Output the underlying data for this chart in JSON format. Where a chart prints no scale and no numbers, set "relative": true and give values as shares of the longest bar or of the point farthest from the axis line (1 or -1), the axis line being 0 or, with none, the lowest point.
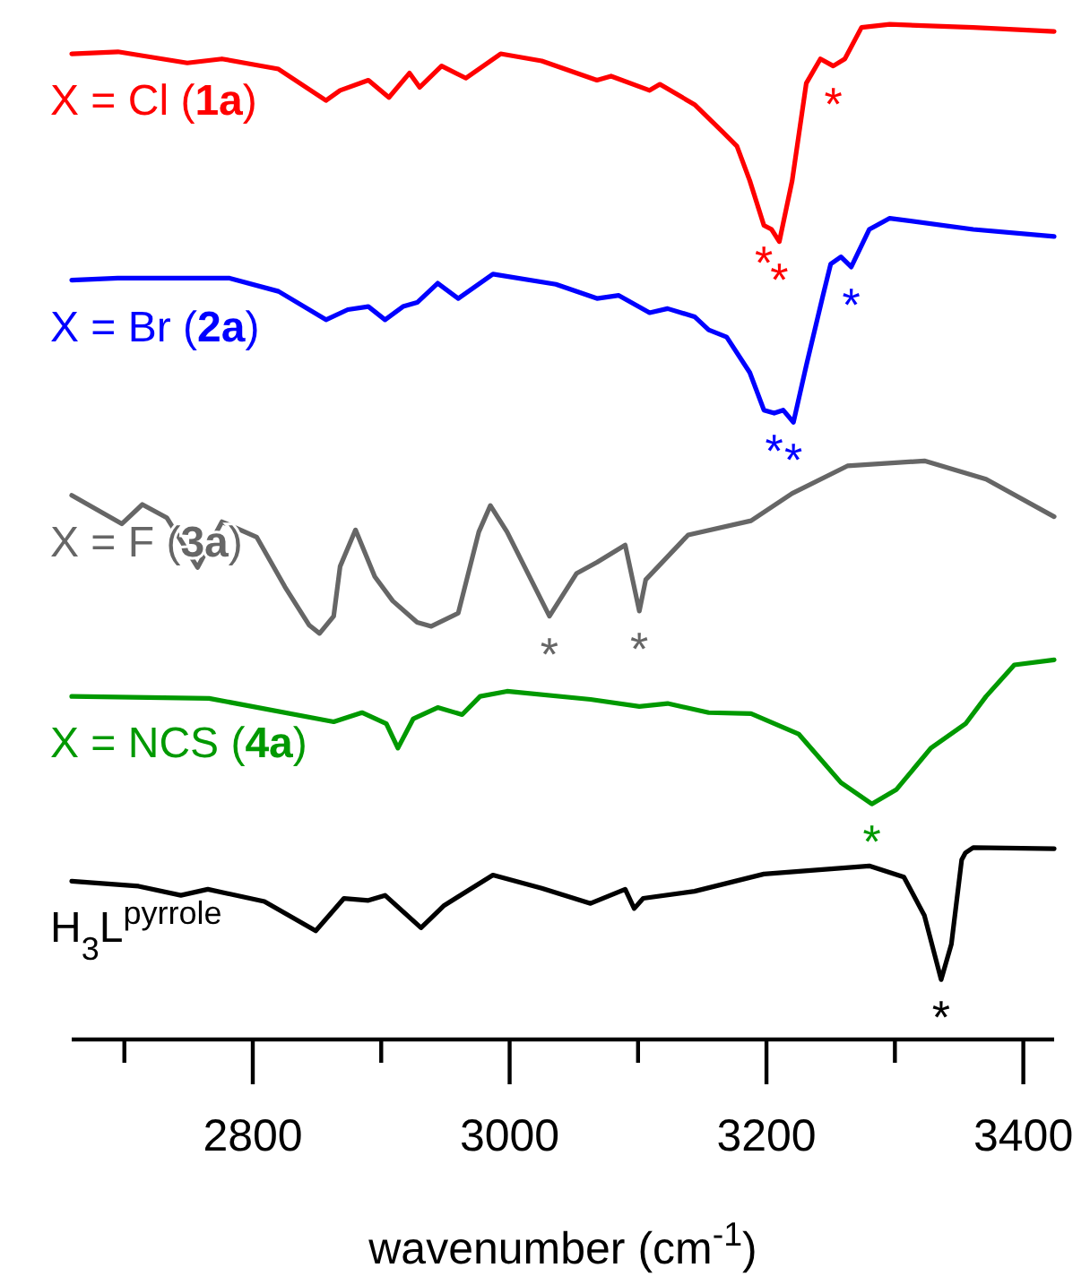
{
  "chart_data": {
    "type": "line",
    "relative": true,
    "xlabel": "wavenumber (cm$^{-1}$)",
    "xlim": [
      2659,
      3424
    ],
    "xticks": [
      {
        "value": 2700,
        "label": null
      },
      2800,
      {
        "value": 2900,
        "label": null
      },
      3000,
      {
        "value": 3100,
        "label": null
      },
      3200,
      {
        "value": 3300,
        "label": null
      },
      3400
    ],
    "tick_labels": "x",
    "legend": false,
    "marker": "none",
    "line_style": "solid",
    "series": [
      {
        "name": "X = Cl (1a)",
        "color": "#ff0000",
        "x": [
          2659,
          2695,
          2749,
          2776,
          2820,
          2857,
          2868,
          2890,
          2906,
          2922,
          2930,
          2947,
          2966,
          2993,
          3025,
          3068,
          3079,
          3109,
          3117,
          3144,
          3166,
          3177,
          3187,
          3198,
          3204,
          3210,
          3220,
          3231,
          3242,
          3252,
          3261,
          3274,
          3296,
          3361,
          3424
        ],
        "values": [
          0.971,
          0.973,
          0.962,
          0.966,
          0.956,
          0.925,
          0.935,
          0.945,
          0.928,
          0.952,
          0.938,
          0.959,
          0.947,
          0.971,
          0.964,
          0.945,
          0.949,
          0.935,
          0.941,
          0.921,
          0.894,
          0.88,
          0.846,
          0.802,
          0.798,
          0.786,
          0.846,
          0.942,
          0.966,
          0.959,
          0.966,
          0.997,
          1.0,
          0.997,
          0.993
        ]
      },
      {
        "name": "X = Br (2a)",
        "color": "#0000ff",
        "x": [
          2659,
          2695,
          2782,
          2820,
          2857,
          2874,
          2890,
          2903,
          2917,
          2928,
          2944,
          2960,
          2987,
          3036,
          3068,
          3085,
          3109,
          3123,
          3144,
          3155,
          3169,
          3187,
          3198,
          3206,
          3213,
          3221,
          3231,
          3244,
          3250,
          3258,
          3266,
          3280,
          3296,
          3361,
          3424
        ],
        "values": [
          0.748,
          0.75,
          0.75,
          0.737,
          0.709,
          0.719,
          0.722,
          0.709,
          0.722,
          0.726,
          0.745,
          0.73,
          0.754,
          0.744,
          0.73,
          0.733,
          0.716,
          0.72,
          0.712,
          0.699,
          0.692,
          0.657,
          0.62,
          0.617,
          0.62,
          0.608,
          0.664,
          0.733,
          0.764,
          0.771,
          0.761,
          0.798,
          0.809,
          0.798,
          0.791
        ]
      },
      {
        "name": "X = F (3a)",
        "color": "#666666",
        "x": [
          2659,
          2698,
          2714,
          2733,
          2757,
          2776,
          2803,
          2825,
          2844,
          2852,
          2863,
          2868,
          2880,
          2895,
          2909,
          2928,
          2939,
          2960,
          2976,
          2985,
          2998,
          3031,
          3052,
          3068,
          3090,
          3101,
          3106,
          3139,
          3188,
          3220,
          3263,
          3323,
          3371,
          3424
        ],
        "values": [
          0.536,
          0.508,
          0.527,
          0.514,
          0.465,
          0.51,
          0.495,
          0.446,
          0.408,
          0.4,
          0.417,
          0.466,
          0.502,
          0.456,
          0.432,
          0.411,
          0.407,
          0.42,
          0.5,
          0.526,
          0.5,
          0.417,
          0.459,
          0.47,
          0.487,
          0.422,
          0.453,
          0.497,
          0.511,
          0.538,
          0.565,
          0.57,
          0.552,
          0.515
        ]
      },
      {
        "name": "X = NCS (4a)",
        "color": "#009900",
        "x": [
          2659,
          2766,
          2863,
          2885,
          2904,
          2913,
          2925,
          2944,
          2963,
          2977,
          2998,
          3063,
          3101,
          3123,
          3155,
          3188,
          3225,
          3258,
          3282,
          3301,
          3328,
          3355,
          3371,
          3393,
          3424
        ],
        "values": [
          0.338,
          0.336,
          0.313,
          0.322,
          0.311,
          0.287,
          0.316,
          0.327,
          0.32,
          0.338,
          0.343,
          0.335,
          0.328,
          0.331,
          0.322,
          0.321,
          0.301,
          0.253,
          0.232,
          0.246,
          0.287,
          0.311,
          0.338,
          0.369,
          0.374
        ]
      },
      {
        "name": "H$_{3}$L$^{pyrrole}$",
        "color": "#000000",
        "x": [
          2659,
          2711,
          2744,
          2765,
          2809,
          2849,
          2871,
          2890,
          2903,
          2931,
          2949,
          2987,
          3025,
          3063,
          3090,
          3097,
          3104,
          3144,
          3198,
          3280,
          3307,
          3323,
          3336,
          3344,
          3352,
          3355,
          3361,
          3424
        ],
        "values": [
          0.156,
          0.151,
          0.142,
          0.148,
          0.136,
          0.107,
          0.139,
          0.137,
          0.142,
          0.11,
          0.132,
          0.162,
          0.149,
          0.134,
          0.148,
          0.129,
          0.139,
          0.146,
          0.163,
          0.171,
          0.16,
          0.122,
          0.059,
          0.094,
          0.177,
          0.184,
          0.189,
          0.188
        ]
      }
    ],
    "annotations": [
      {
        "text": "*",
        "x": 3198,
        "y": 0.802
      },
      {
        "text": "*",
        "x": 3210,
        "y": 0.786
      },
      {
        "text": "*",
        "x": 3252,
        "y": 0.959
      },
      {
        "text": "*",
        "x": 3206,
        "y": 0.617
      },
      {
        "text": "*",
        "x": 3221,
        "y": 0.608
      },
      {
        "text": "*",
        "x": 3266,
        "y": 0.761
      },
      {
        "text": "*",
        "x": 3031,
        "y": 0.417
      },
      {
        "text": "*",
        "x": 3101,
        "y": 0.422
      },
      {
        "text": "*",
        "x": 3282,
        "y": 0.232
      },
      {
        "text": "*",
        "x": 3336,
        "y": 0.059
      }
    ]
  }
}
